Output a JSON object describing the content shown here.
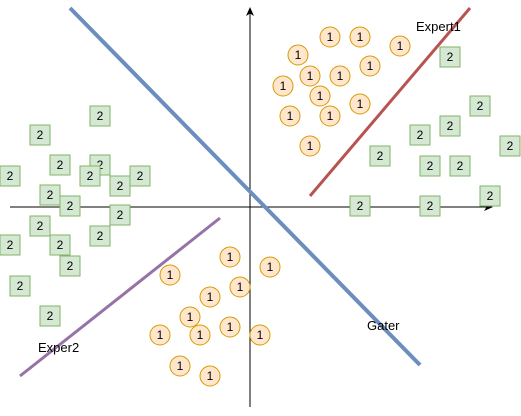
{
  "colors": {
    "circle_fill": "#ffe6cc",
    "circle_stroke": "#d79b00",
    "square_fill": "#d5e8d4",
    "square_stroke": "#82b366",
    "gater_line": "#6c8ebf",
    "expert1_line": "#b85450",
    "expert2_line": "#9673a6",
    "axis": "#000000"
  },
  "labels": {
    "expert1": "Expert1",
    "expert2": "Exper2",
    "gater": "Gater"
  },
  "circle_text": "1",
  "square_text": "2"
}
